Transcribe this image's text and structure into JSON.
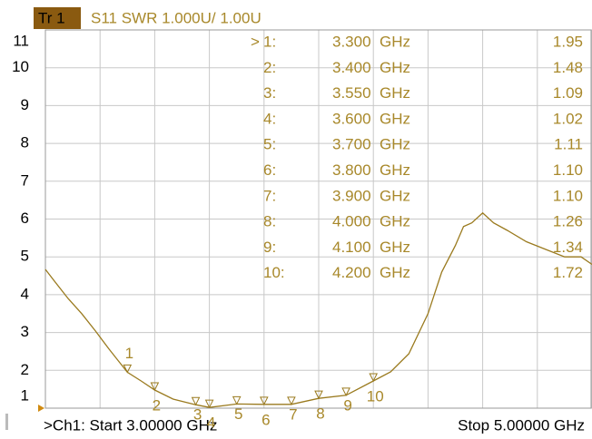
{
  "chart_data": {
    "type": "line",
    "trace_badge": "Tr 1",
    "title": "S11 SWR 1.000U/ 1.00U",
    "start_label": ">Ch1:  Start  3.00000 GHz",
    "stop_label": "Stop  5.00000 GHz",
    "active_prefix": ">",
    "color": "#9a7a1e",
    "grid": true,
    "xlim": [
      3.0,
      5.0
    ],
    "xticks": [
      3.0,
      3.2,
      3.4,
      3.6,
      3.8,
      4.0,
      4.2,
      4.4,
      4.6,
      4.8,
      5.0
    ],
    "ylim": [
      1,
      11
    ],
    "yticks": [
      1,
      2,
      3,
      4,
      5,
      6,
      7,
      8,
      9,
      10,
      11
    ],
    "x": [
      3.0,
      3.033,
      3.083,
      3.133,
      3.183,
      3.233,
      3.3,
      3.35,
      3.4,
      3.467,
      3.55,
      3.6,
      3.7,
      3.8,
      3.9,
      4.0,
      4.1,
      4.2,
      4.263,
      4.33,
      4.4,
      4.45,
      4.5,
      4.53,
      4.56,
      4.6,
      4.64,
      4.69,
      4.76,
      4.83,
      4.9,
      4.96,
      5.0
    ],
    "values": [
      4.67,
      4.36,
      3.9,
      3.5,
      3.04,
      2.56,
      1.95,
      1.72,
      1.48,
      1.24,
      1.09,
      1.02,
      1.11,
      1.1,
      1.1,
      1.26,
      1.34,
      1.72,
      1.96,
      2.44,
      3.5,
      4.6,
      5.3,
      5.8,
      5.9,
      6.16,
      5.9,
      5.7,
      5.4,
      5.2,
      5.0,
      5.0,
      4.8
    ],
    "markers": [
      {
        "table_label": "1:",
        "trace_label": "1",
        "freq": 3.3,
        "freq_label": "3.300  GHz",
        "value": 1.95,
        "value_label": "1.95"
      },
      {
        "table_label": "2:",
        "trace_label": "2",
        "freq": 3.4,
        "freq_label": "3.400  GHz",
        "value": 1.48,
        "value_label": "1.48"
      },
      {
        "table_label": "3:",
        "trace_label": "3",
        "freq": 3.55,
        "freq_label": "3.550  GHz",
        "value": 1.09,
        "value_label": "1.09"
      },
      {
        "table_label": "4:",
        "trace_label": "4",
        "freq": 3.6,
        "freq_label": "3.600  GHz",
        "value": 1.02,
        "value_label": "1.02"
      },
      {
        "table_label": "5:",
        "trace_label": "5",
        "freq": 3.7,
        "freq_label": "3.700  GHz",
        "value": 1.11,
        "value_label": "1.11"
      },
      {
        "table_label": "6:",
        "trace_label": "6",
        "freq": 3.8,
        "freq_label": "3.800  GHz",
        "value": 1.1,
        "value_label": "1.10"
      },
      {
        "table_label": "7:",
        "trace_label": "7",
        "freq": 3.9,
        "freq_label": "3.900  GHz",
        "value": 1.1,
        "value_label": "1.10"
      },
      {
        "table_label": "8:",
        "trace_label": "8",
        "freq": 4.0,
        "freq_label": "4.000  GHz",
        "value": 1.26,
        "value_label": "1.26"
      },
      {
        "table_label": "9:",
        "trace_label": "9",
        "freq": 4.1,
        "freq_label": "4.100  GHz",
        "value": 1.34,
        "value_label": "1.34"
      },
      {
        "table_label": "10:",
        "trace_label": "10",
        "freq": 4.2,
        "freq_label": "4.200  GHz",
        "value": 1.72,
        "value_label": "1.72"
      }
    ]
  }
}
